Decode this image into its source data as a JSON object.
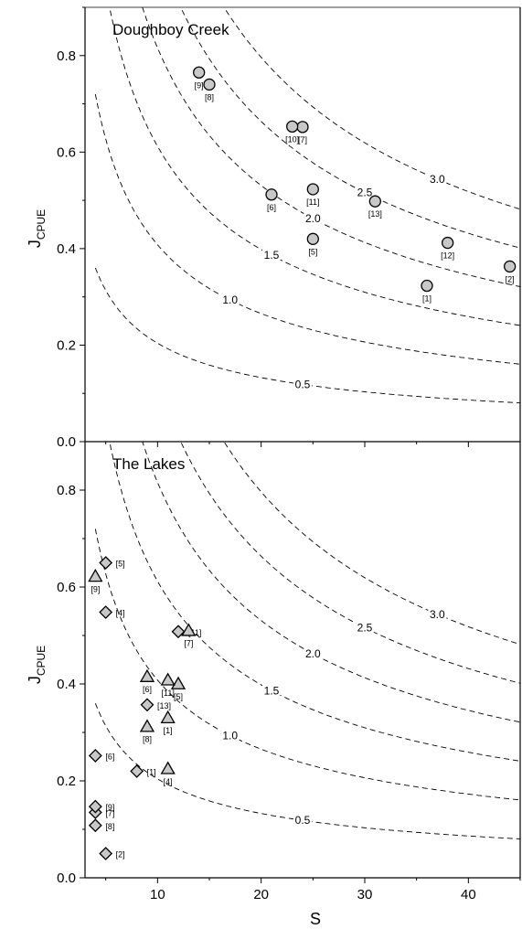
{
  "chart_data": {
    "type": "scatter",
    "x_label": "S",
    "y_label_main": "J",
    "y_label_sub": "CPUE",
    "x_range": [
      3,
      45
    ],
    "y_range": [
      0,
      0.9
    ],
    "x_ticks": [
      10,
      20,
      30,
      40
    ],
    "y_ticks": [
      "0.0",
      "0.2",
      "0.4",
      "0.6",
      "0.8"
    ],
    "contours": [
      {
        "label": "0.5",
        "k": 0.5
      },
      {
        "label": "1.0",
        "k": 1.0
      },
      {
        "label": "1.5",
        "k": 1.5
      },
      {
        "label": "2.0",
        "k": 2.0
      },
      {
        "label": "2.5",
        "k": 2.5
      },
      {
        "label": "3.0",
        "k": 3.0
      }
    ],
    "panels": [
      {
        "title": "Doughboy Creek",
        "series": [
          {
            "marker": "circle",
            "points": [
              {
                "x": 36,
                "y": 0.323,
                "label": "[1]"
              },
              {
                "x": 44,
                "y": 0.363,
                "label": "[2]"
              },
              {
                "x": 25,
                "y": 0.42,
                "label": "[5]"
              },
              {
                "x": 21,
                "y": 0.512,
                "label": "[6]"
              },
              {
                "x": 24,
                "y": 0.652,
                "label": "[7]"
              },
              {
                "x": 15,
                "y": 0.74,
                "label": "[8]"
              },
              {
                "x": 14,
                "y": 0.765,
                "label": "[9]"
              },
              {
                "x": 23,
                "y": 0.653,
                "label": "[10]"
              },
              {
                "x": 25,
                "y": 0.523,
                "label": "[11]"
              },
              {
                "x": 38,
                "y": 0.412,
                "label": "[12]"
              },
              {
                "x": 31,
                "y": 0.498,
                "label": "[13]"
              }
            ]
          }
        ]
      },
      {
        "title": "The Lakes",
        "series": [
          {
            "marker": "diamond",
            "points": [
              {
                "x": 8,
                "y": 0.22,
                "label": "[1]"
              },
              {
                "x": 5,
                "y": 0.05,
                "label": "[2]"
              },
              {
                "x": 5,
                "y": 0.548,
                "label": "[4]"
              },
              {
                "x": 5,
                "y": 0.65,
                "label": "[5]"
              },
              {
                "x": 4,
                "y": 0.252,
                "label": "[6]"
              },
              {
                "x": 4,
                "y": 0.135,
                "label": "[7]"
              },
              {
                "x": 4,
                "y": 0.108,
                "label": "[8]"
              },
              {
                "x": 4,
                "y": 0.147,
                "label": "[9]"
              },
              {
                "x": 12,
                "y": 0.508,
                "label": "[11]"
              },
              {
                "x": 9,
                "y": 0.357,
                "label": "[13]"
              }
            ]
          },
          {
            "marker": "triangle",
            "points": [
              {
                "x": 11,
                "y": 0.33,
                "label": "[1]"
              },
              {
                "x": 11,
                "y": 0.225,
                "label": "[4]"
              },
              {
                "x": 12,
                "y": 0.4,
                "label": "[5]"
              },
              {
                "x": 9,
                "y": 0.415,
                "label": "[6]"
              },
              {
                "x": 13,
                "y": 0.51,
                "label": "[7]"
              },
              {
                "x": 9,
                "y": 0.312,
                "label": "[8]"
              },
              {
                "x": 4,
                "y": 0.622,
                "label": "[9]"
              },
              {
                "x": 11,
                "y": 0.408,
                "label": "[11]"
              }
            ]
          }
        ]
      }
    ],
    "marker_fill": "#c8c8c8"
  }
}
